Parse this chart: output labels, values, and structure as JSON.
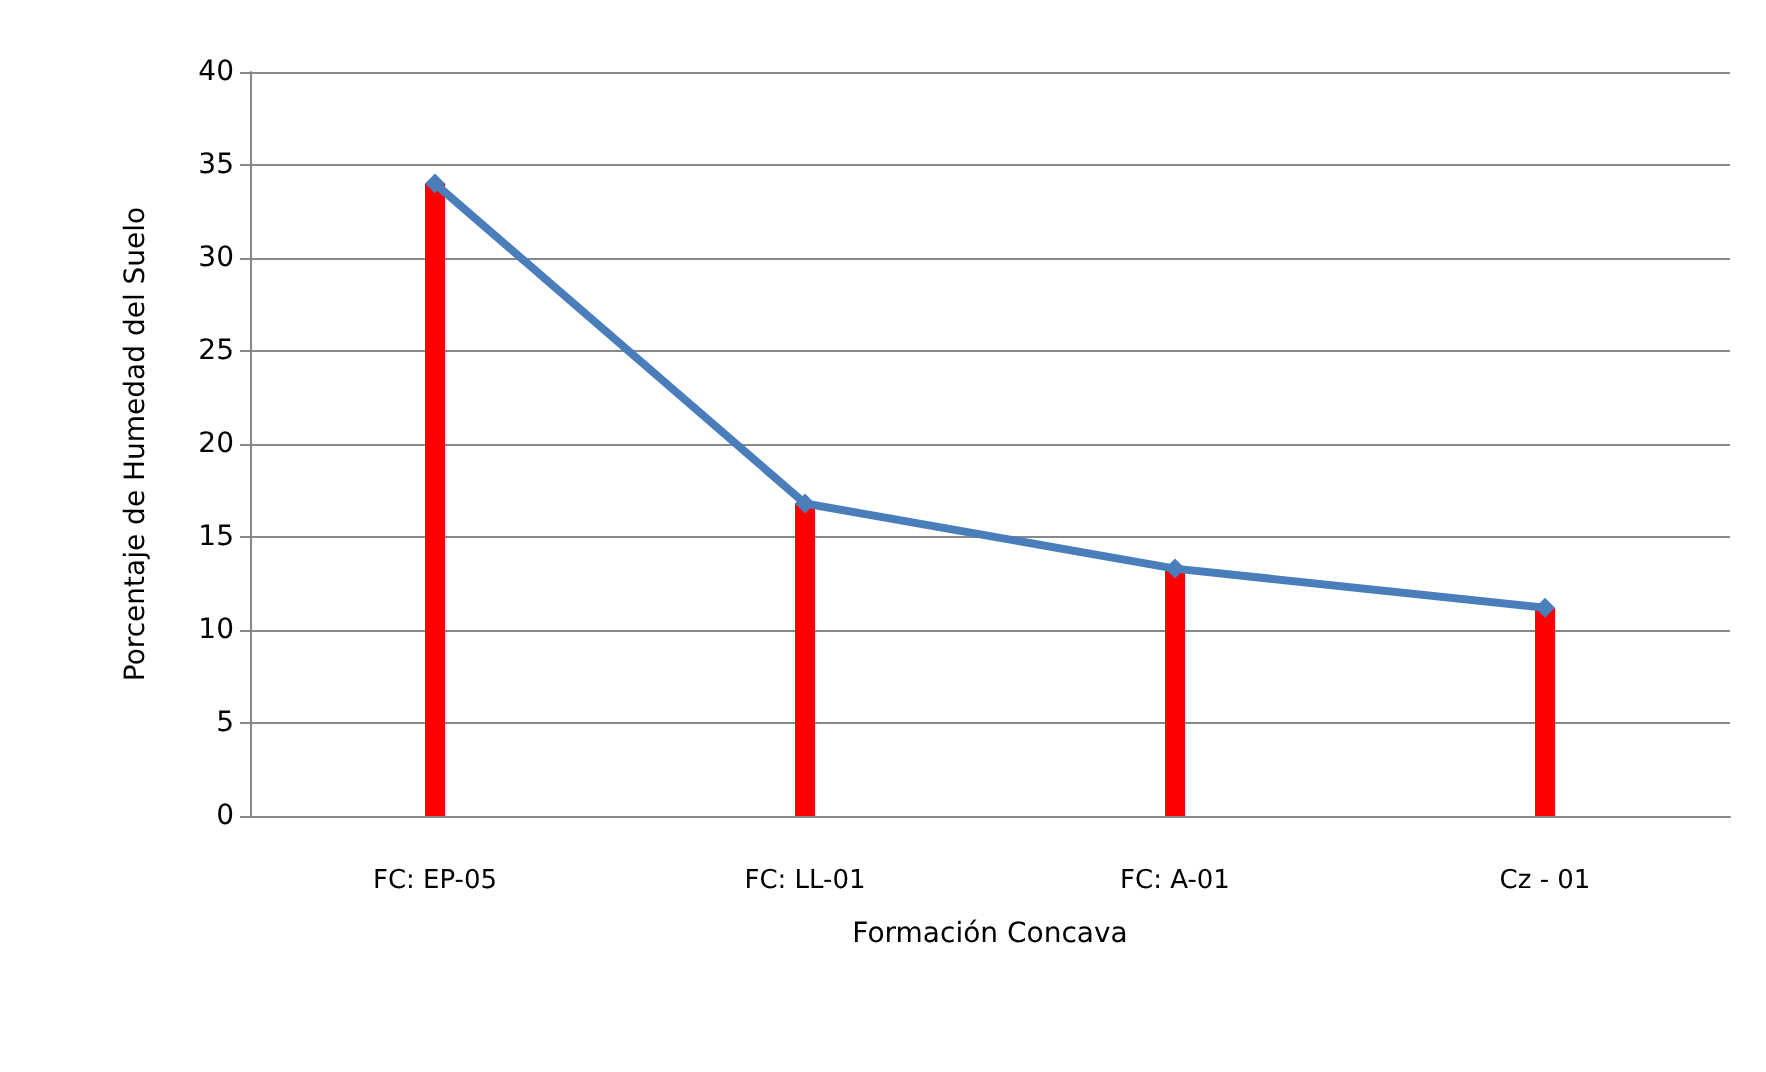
{
  "chart_data": {
    "type": "bar",
    "xlabel": "Formación Concava",
    "ylabel": "Porcentaje de Humedad del Suelo",
    "categories": [
      "FC: EP-05",
      "FC: LL-01",
      "FC: A-01",
      "Cz - 01"
    ],
    "series": [
      {
        "color": "#ff0000",
        "values": [
          34,
          16.8,
          13.3,
          11.2
        ]
      },
      {
        "type": "line",
        "color": "#4a7ebb",
        "marker": "diamond",
        "values": [
          34,
          16.8,
          13.3,
          11.2
        ]
      }
    ],
    "ylim": [
      0,
      40
    ],
    "yticks": [
      0,
      5,
      10,
      15,
      20,
      25,
      30,
      35,
      40
    ],
    "grid": "y"
  }
}
